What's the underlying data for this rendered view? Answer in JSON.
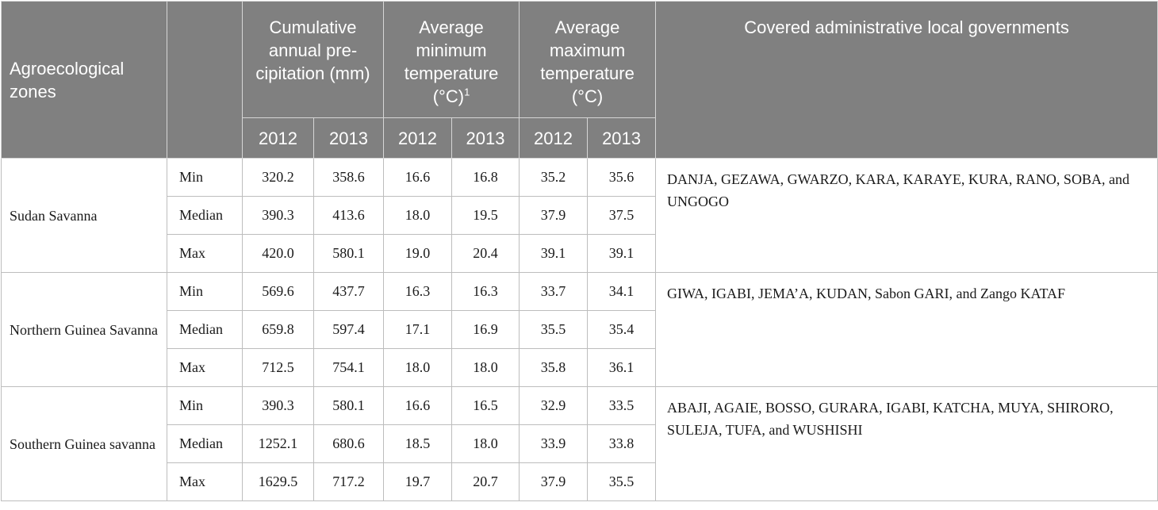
{
  "header": {
    "zone_label": "Agroecological zones",
    "precip_label": "Cumulative annual pre-cipitation (mm)",
    "min_temp_label": "Average minimum temperature (°C)",
    "min_temp_footnote": "1",
    "max_temp_label": "Average maximum temperature (°C)",
    "lg_label": "Covered administrative local governments",
    "years": [
      "2012",
      "2013",
      "2012",
      "2013",
      "2012",
      "2013"
    ]
  },
  "zones": [
    {
      "name": "Sudan Savanna",
      "local_governments": "DANJA, GEZAWA, GWARZO, KARA, KARAYE, KURA, RANO, SOBA, and UNGOGO",
      "rows": [
        {
          "stat": "Min",
          "values": [
            "320.2",
            "358.6",
            "16.6",
            "16.8",
            "35.2",
            "35.6"
          ]
        },
        {
          "stat": "Median",
          "values": [
            "390.3",
            "413.6",
            "18.0",
            "19.5",
            "37.9",
            "37.5"
          ]
        },
        {
          "stat": "Max",
          "values": [
            "420.0",
            "580.1",
            "19.0",
            "20.4",
            "39.1",
            "39.1"
          ]
        }
      ]
    },
    {
      "name": "Northern Guinea Savanna",
      "local_governments": "GIWA, IGABI, JEMA’A, KUDAN, Sabon GARI, and Zango KATAF",
      "rows": [
        {
          "stat": "Min",
          "values": [
            "569.6",
            "437.7",
            "16.3",
            "16.3",
            "33.7",
            "34.1"
          ]
        },
        {
          "stat": "Median",
          "values": [
            "659.8",
            "597.4",
            "17.1",
            "16.9",
            "35.5",
            "35.4"
          ]
        },
        {
          "stat": "Max",
          "values": [
            "712.5",
            "754.1",
            "18.0",
            "18.0",
            "35.8",
            "36.1"
          ]
        }
      ]
    },
    {
      "name": "Southern Guinea savanna",
      "local_governments": "ABAJI, AGAIE, BOSSO, GURARA, IGABI, KATCHA, MUYA, SHIRORO, SULEJA, TUFA, and WUSHISHI",
      "rows": [
        {
          "stat": "Min",
          "values": [
            "390.3",
            "580.1",
            "16.6",
            "16.5",
            "32.9",
            "33.5"
          ]
        },
        {
          "stat": "Median",
          "values": [
            "1252.1",
            "680.6",
            "18.5",
            "18.0",
            "33.9",
            "33.8"
          ]
        },
        {
          "stat": "Max",
          "values": [
            "1629.5",
            "717.2",
            "19.7",
            "20.7",
            "37.9",
            "35.5"
          ]
        }
      ]
    }
  ]
}
